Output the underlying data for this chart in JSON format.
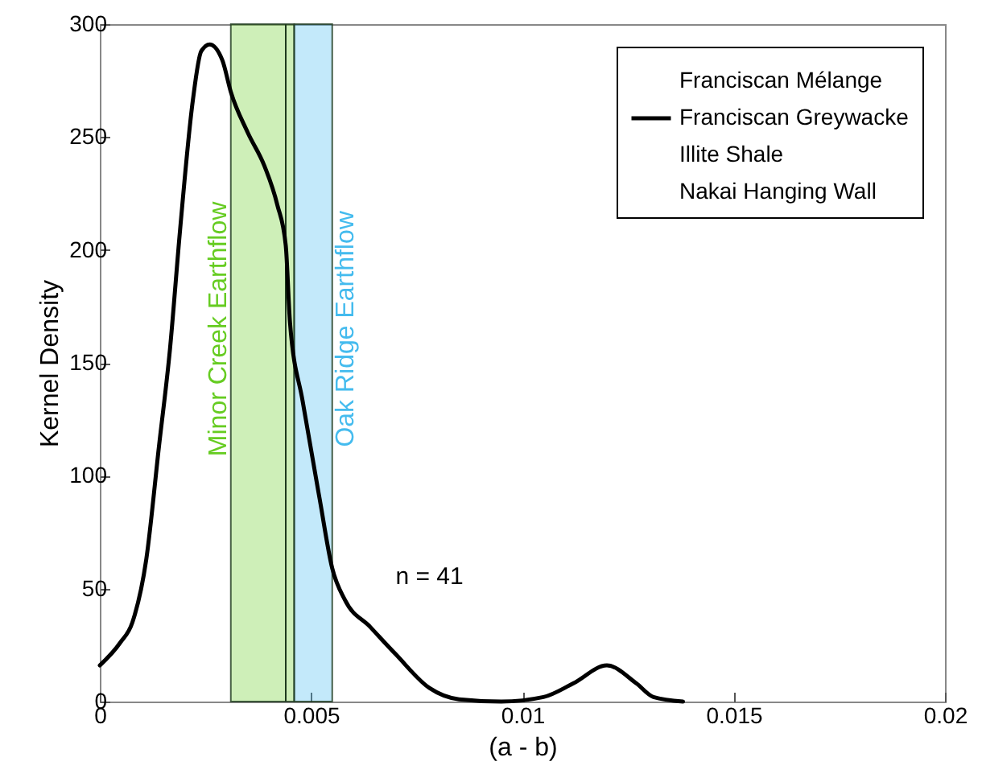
{
  "chart_data": {
    "type": "line",
    "xlabel": "(a - b)",
    "ylabel": "Kernel Density",
    "x": [
      0,
      0.00048,
      0.00077,
      0.0011,
      0.0014,
      0.00166,
      0.0019,
      0.0022,
      0.0024,
      0.0026,
      0.0029,
      0.0031,
      0.0035,
      0.0039,
      0.0042,
      0.0044,
      0.0045,
      0.0048,
      0.0052,
      0.0055,
      0.0058,
      0.0064,
      0.007,
      0.0078,
      0.0085,
      0.0095,
      0.0105,
      0.0112,
      0.012,
      0.0127,
      0.0131,
      0.0138
    ],
    "series": [
      {
        "name": "Franciscan Mélange",
        "values": [
          null,
          null,
          null,
          null,
          null,
          null,
          null,
          null,
          null,
          null,
          null,
          null,
          null,
          null,
          null,
          null,
          null,
          null,
          null,
          null,
          null,
          null,
          null,
          null,
          null,
          null,
          null,
          null,
          null,
          null,
          null,
          null
        ]
      },
      {
        "name": "Franciscan Greywacke",
        "color": "#000000",
        "values": [
          16,
          26,
          35,
          63,
          113,
          156,
          209,
          266,
          288,
          291,
          284,
          270,
          252,
          237,
          220,
          202,
          168,
          133,
          90,
          59,
          45,
          33,
          21,
          6,
          1,
          0,
          2,
          8,
          16,
          8,
          2,
          0
        ]
      },
      {
        "name": "Illite Shale",
        "values": [
          null,
          null,
          null,
          null,
          null,
          null,
          null,
          null,
          null,
          null,
          null,
          null,
          null,
          null,
          null,
          null,
          null,
          null,
          null,
          null,
          null,
          null,
          null,
          null,
          null,
          null,
          null,
          null,
          null,
          null,
          null,
          null
        ]
      },
      {
        "name": "Nakai Hanging Wall",
        "values": [
          null,
          null,
          null,
          null,
          null,
          null,
          null,
          null,
          null,
          null,
          null,
          null,
          null,
          null,
          null,
          null,
          null,
          null,
          null,
          null,
          null,
          null,
          null,
          null,
          null,
          null,
          null,
          null,
          null,
          null,
          null,
          null
        ]
      }
    ],
    "xlim": [
      0,
      0.02
    ],
    "xticks": [
      0,
      0.005,
      0.01,
      0.015,
      0.02
    ],
    "ylim": [
      0,
      300
    ],
    "yticks": [
      0,
      50,
      100,
      150,
      200,
      250,
      300
    ],
    "bands": [
      {
        "axis": "x",
        "from": 0.0031,
        "to": 0.0046,
        "label": "Minor Creek Earthflow",
        "color": "#66cc22"
      },
      {
        "axis": "x",
        "from": 0.0046,
        "to": 0.0055,
        "label": "Oak Ridge Earthflow",
        "color": "#44bbee"
      }
    ],
    "ref_lines": [
      {
        "axis": "x",
        "value": 0.0044,
        "color": "#1e3a1e"
      }
    ],
    "annotations": [
      "n = 41"
    ],
    "legend": "top right"
  }
}
